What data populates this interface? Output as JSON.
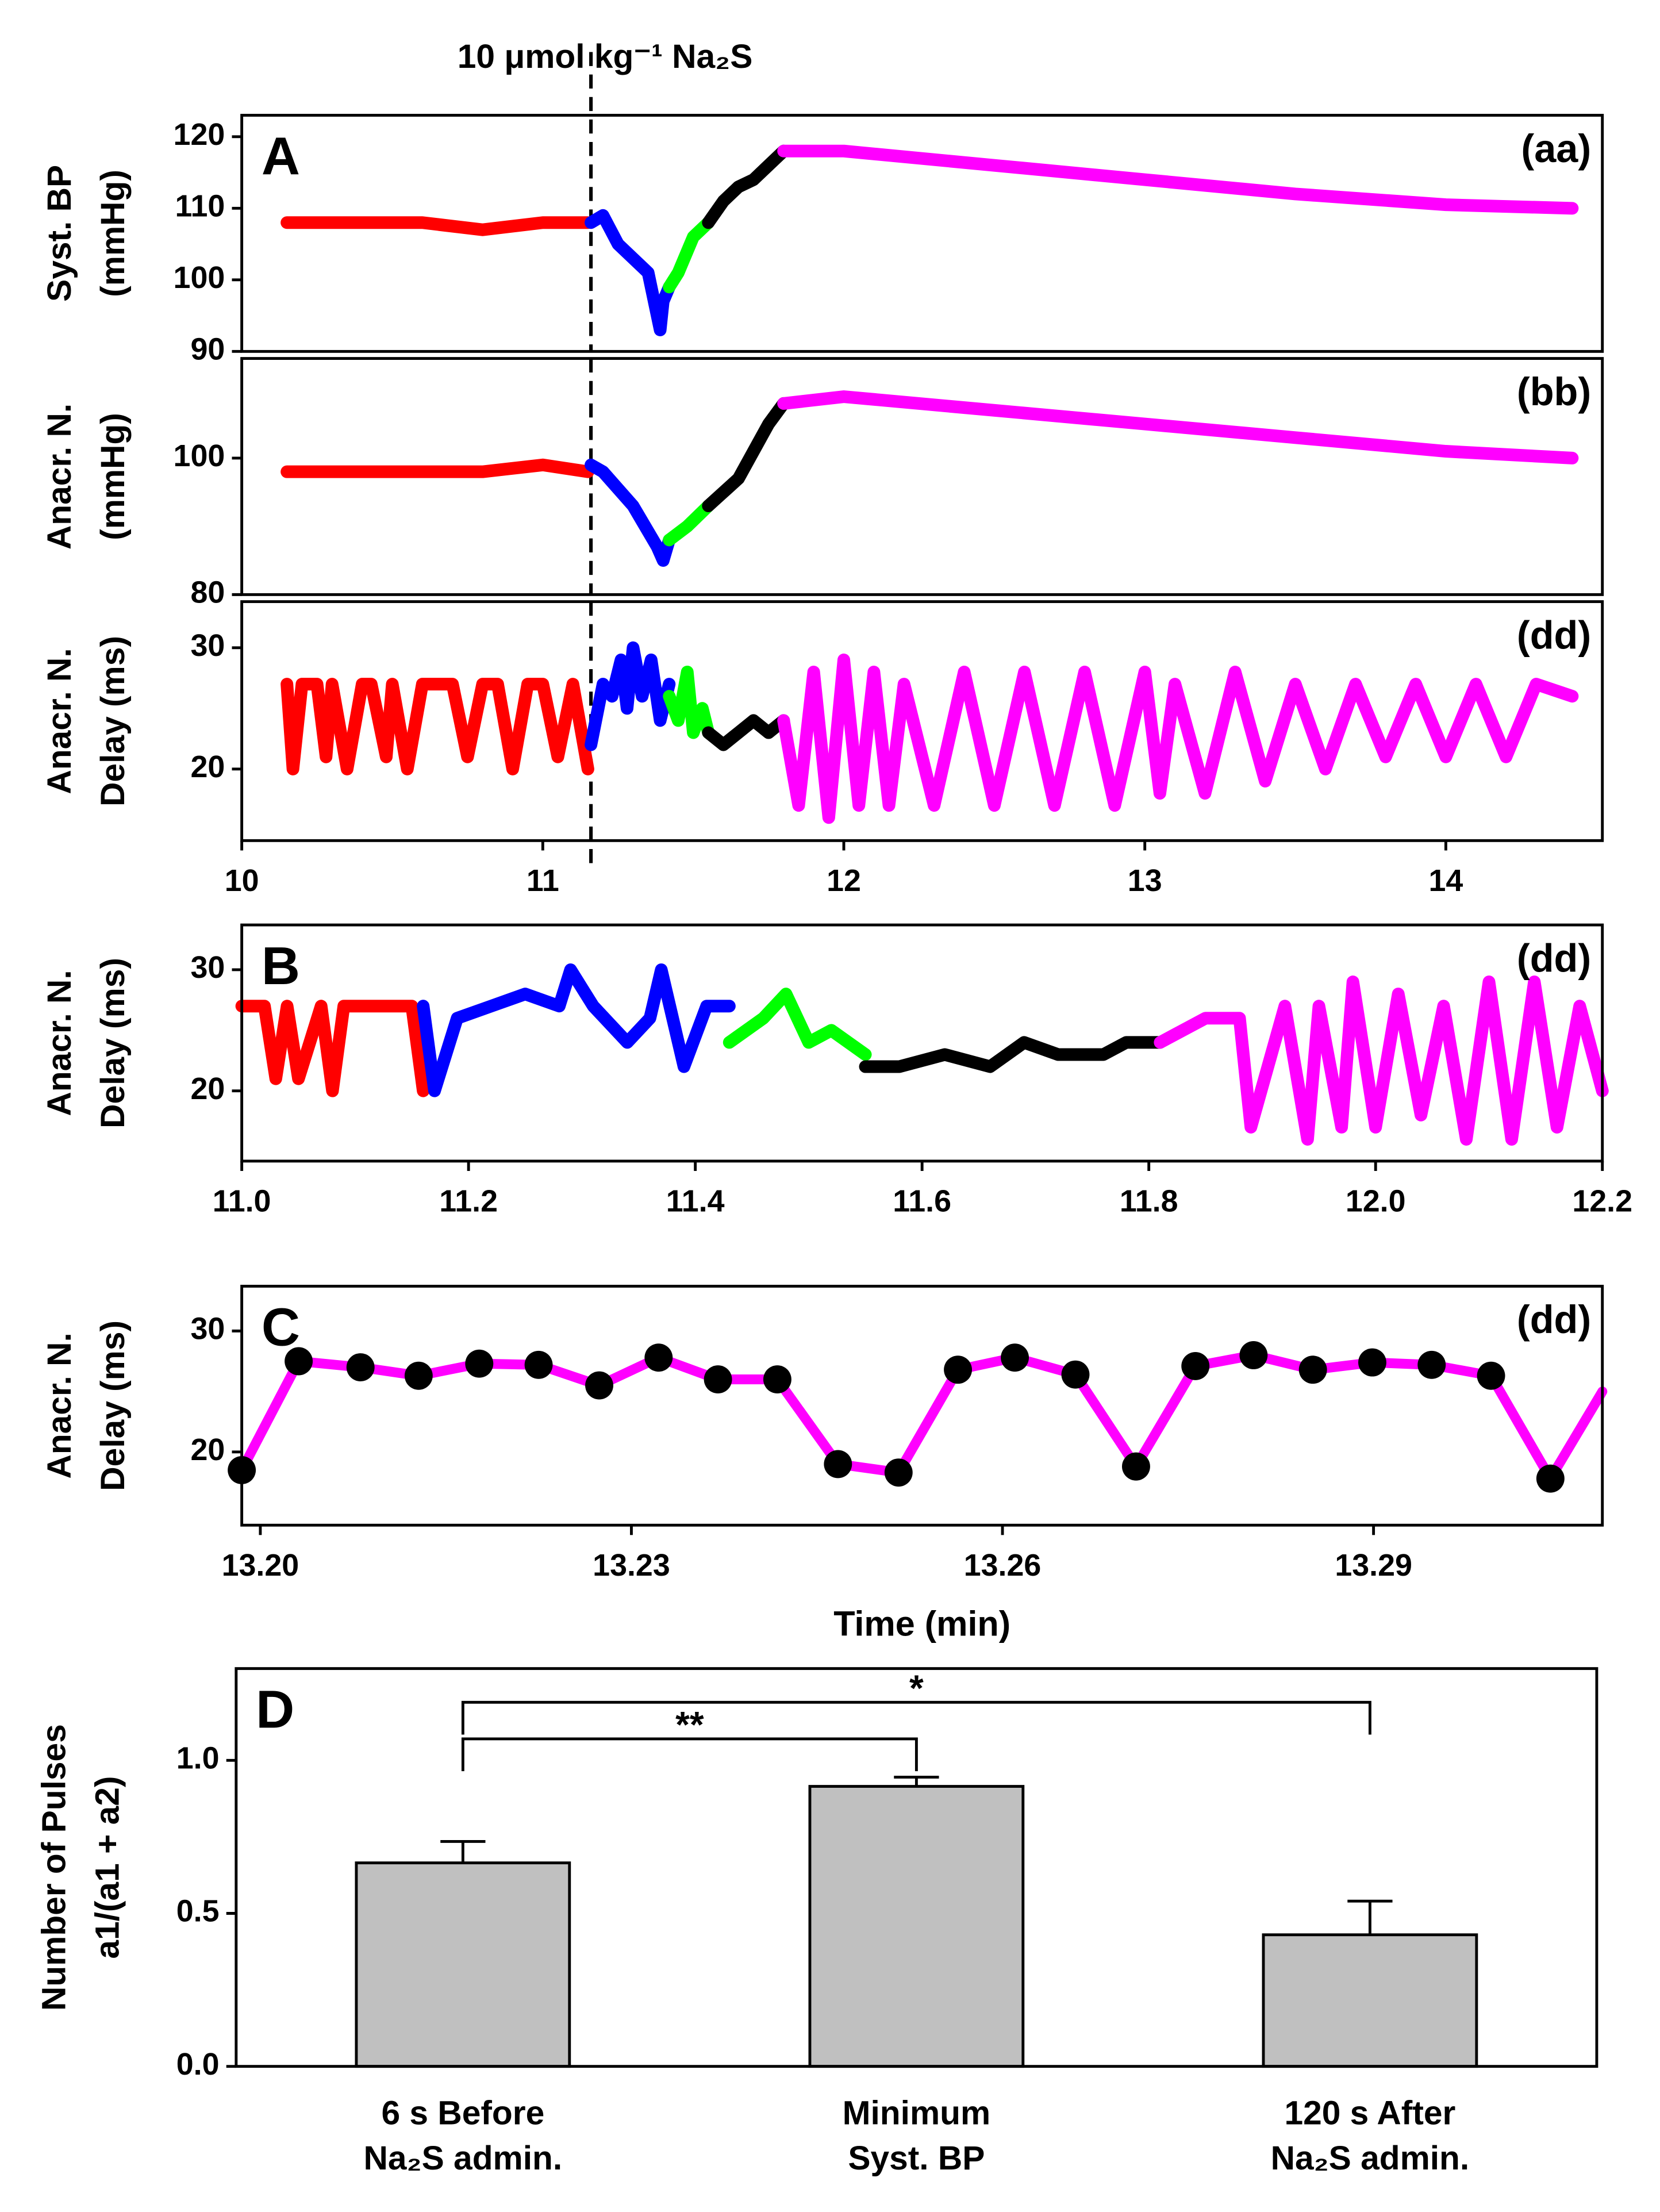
{
  "chart_data": [
    {
      "type": "line",
      "panel": "A",
      "tag": "(aa)",
      "ylabel": [
        "Syst. BP",
        "(mmHg)"
      ],
      "annotation": "10 μmol kg⁻¹ Na₂S",
      "vline": 11.16,
      "xlim": [
        10,
        14.52
      ],
      "ylim": [
        90,
        123
      ],
      "yticks": [
        90,
        100,
        110,
        120
      ],
      "series": [
        {
          "color": "#ff0000",
          "x": [
            10.15,
            10.4,
            10.6,
            10.8,
            11.0,
            11.15
          ],
          "values": [
            108,
            108,
            108,
            107,
            108,
            108
          ]
        },
        {
          "color": "#0000ff",
          "x": [
            11.16,
            11.2,
            11.25,
            11.3,
            11.35,
            11.39,
            11.4,
            11.42
          ],
          "values": [
            108,
            109,
            105,
            103,
            101,
            93,
            97,
            99
          ]
        },
        {
          "color": "#00ff00",
          "x": [
            11.42,
            11.45,
            11.5,
            11.55
          ],
          "values": [
            99,
            101,
            106,
            108
          ]
        },
        {
          "color": "#000000",
          "x": [
            11.55,
            11.6,
            11.65,
            11.7,
            11.75,
            11.8
          ],
          "values": [
            108,
            111,
            113,
            114,
            116,
            118
          ]
        },
        {
          "color": "#ff00ff",
          "x": [
            11.8,
            12.0,
            12.5,
            13.0,
            13.5,
            14.0,
            14.42
          ],
          "values": [
            118,
            118,
            116,
            114,
            112,
            110.5,
            110
          ]
        }
      ]
    },
    {
      "type": "line",
      "tag": "(bb)",
      "ylabel": [
        "Anacr. N.",
        "(mmHg)"
      ],
      "vline": 11.16,
      "xlim": [
        10,
        14.52
      ],
      "ylim": [
        80,
        114.6
      ],
      "yticks": [
        80,
        100
      ],
      "series": [
        {
          "color": "#ff0000",
          "x": [
            10.15,
            10.4,
            10.6,
            10.8,
            11.0,
            11.15
          ],
          "values": [
            98,
            98,
            98,
            98,
            99,
            98
          ]
        },
        {
          "color": "#0000ff",
          "x": [
            11.16,
            11.2,
            11.3,
            11.38,
            11.4,
            11.42
          ],
          "values": [
            99,
            98,
            93,
            87,
            85,
            88
          ]
        },
        {
          "color": "#00ff00",
          "x": [
            11.42,
            11.48,
            11.55
          ],
          "values": [
            88,
            90,
            93
          ]
        },
        {
          "color": "#000000",
          "x": [
            11.55,
            11.6,
            11.65,
            11.7,
            11.75,
            11.8
          ],
          "values": [
            93,
            95,
            97,
            101,
            105,
            108
          ]
        },
        {
          "color": "#ff00ff",
          "x": [
            11.8,
            12.0,
            12.5,
            13.0,
            13.5,
            14.0,
            14.42
          ],
          "values": [
            108,
            109,
            107,
            105,
            103,
            101,
            100
          ]
        }
      ]
    },
    {
      "type": "line",
      "tag": "(dd)",
      "ylabel": [
        "Anacr. N.",
        "Delay (ms)"
      ],
      "vline": 11.16,
      "xlim": [
        10,
        14.52
      ],
      "ylim": [
        14.1,
        33.8
      ],
      "yticks": [
        20,
        30
      ],
      "xticks": [
        10,
        11,
        12,
        13,
        14
      ],
      "series": [
        {
          "color": "#ff0000",
          "x": [
            10.15,
            10.17,
            10.2,
            10.25,
            10.28,
            10.3,
            10.35,
            10.4,
            10.43,
            10.48,
            10.5,
            10.55,
            10.6,
            10.65,
            10.7,
            10.75,
            10.8,
            10.85,
            10.9,
            10.95,
            11.0,
            11.05,
            11.1,
            11.15
          ],
          "values": [
            27,
            20,
            27,
            27,
            21,
            27,
            20,
            27,
            27,
            21,
            27,
            20,
            27,
            27,
            27,
            21,
            27,
            27,
            20,
            27,
            27,
            21,
            27,
            20
          ]
        },
        {
          "color": "#0000ff",
          "x": [
            11.16,
            11.2,
            11.23,
            11.26,
            11.28,
            11.3,
            11.33,
            11.36,
            11.39,
            11.42
          ],
          "values": [
            22,
            27,
            26,
            29,
            25,
            30,
            26,
            29,
            24,
            27
          ]
        },
        {
          "color": "#00ff00",
          "x": [
            11.42,
            11.45,
            11.48,
            11.5,
            11.53,
            11.55
          ],
          "values": [
            26,
            24,
            28,
            23,
            25,
            23
          ]
        },
        {
          "color": "#000000",
          "x": [
            11.55,
            11.6,
            11.65,
            11.7,
            11.75,
            11.8
          ],
          "values": [
            23,
            22,
            23,
            24,
            23,
            24
          ]
        },
        {
          "color": "#ff00ff",
          "x": [
            11.8,
            11.85,
            11.9,
            11.95,
            12.0,
            12.05,
            12.1,
            12.15,
            12.2,
            12.3,
            12.4,
            12.5,
            12.6,
            12.7,
            12.8,
            12.9,
            13.0,
            13.05,
            13.1,
            13.2,
            13.3,
            13.4,
            13.5,
            13.6,
            13.7,
            13.8,
            13.9,
            14.0,
            14.1,
            14.2,
            14.3,
            14.42
          ],
          "values": [
            24,
            17,
            28,
            16,
            29,
            17,
            28,
            17,
            27,
            17,
            28,
            17,
            28,
            17,
            28,
            17,
            28,
            18,
            27,
            18,
            28,
            19,
            27,
            20,
            27,
            21,
            27,
            21,
            27,
            21,
            27,
            26
          ]
        }
      ]
    },
    {
      "type": "line",
      "panel": "B",
      "tag": "(dd)",
      "ylabel": [
        "Anacr. N.",
        "Delay (ms)"
      ],
      "xlim": [
        11.0,
        12.2
      ],
      "ylim": [
        14.2,
        33.7
      ],
      "yticks": [
        20,
        30
      ],
      "xticks": [
        {
          "value": 11,
          "label": "11.0"
        },
        {
          "value": 11.2,
          "label": "11.2"
        },
        {
          "value": 11.4,
          "label": "11.4"
        },
        {
          "value": 11.6,
          "label": "11.6"
        },
        {
          "value": 11.8,
          "label": "11.8"
        },
        {
          "value": 12,
          "label": "12.0"
        },
        {
          "value": 12.2,
          "label": "12.2"
        }
      ],
      "series": [
        {
          "color": "#ff0000",
          "x": [
            11.0,
            11.02,
            11.03,
            11.04,
            11.05,
            11.07,
            11.08,
            11.09,
            11.12,
            11.15,
            11.16
          ],
          "values": [
            27,
            27,
            21,
            27,
            21,
            27,
            20,
            27,
            27,
            27,
            20
          ]
        },
        {
          "color": "#0000ff",
          "x": [
            11.16,
            11.17,
            11.19,
            11.22,
            11.25,
            11.28,
            11.29,
            11.31,
            11.34,
            11.36,
            11.37,
            11.39,
            11.41,
            11.43
          ],
          "values": [
            27,
            20,
            26,
            27,
            28,
            27,
            30,
            27,
            24,
            26,
            30,
            22,
            27,
            27
          ]
        },
        {
          "color": "#00ff00",
          "x": [
            11.43,
            11.46,
            11.48,
            11.5,
            11.52,
            11.55
          ],
          "values": [
            24,
            26,
            28,
            24,
            25,
            23
          ]
        },
        {
          "color": "#000000",
          "x": [
            11.55,
            11.58,
            11.62,
            11.66,
            11.69,
            11.72,
            11.76,
            11.78,
            11.81
          ],
          "values": [
            22,
            22,
            23,
            22,
            24,
            23,
            23,
            24,
            24
          ]
        },
        {
          "color": "#ff00ff",
          "x": [
            11.81,
            11.85,
            11.88,
            11.89,
            11.92,
            11.94,
            11.95,
            11.97,
            11.98,
            12.0,
            12.02,
            12.04,
            12.06,
            12.08,
            12.1,
            12.12,
            12.14,
            12.16,
            12.18,
            12.2
          ],
          "values": [
            24,
            26,
            26,
            17,
            27,
            16,
            27,
            17,
            29,
            17,
            28,
            18,
            27,
            16,
            29,
            16,
            29,
            17,
            27,
            20
          ]
        }
      ]
    },
    {
      "type": "line",
      "panel": "C",
      "tag": "(dd)",
      "ylabel": [
        "Anacr. N.",
        "Delay (ms)"
      ],
      "xlabel": "Time (min)",
      "markers": true,
      "marker_color": "#000000",
      "xlim": [
        13.1985,
        13.3085
      ],
      "ylim": [
        13.95,
        33.7
      ],
      "yticks": [
        20,
        30
      ],
      "xticks": [
        {
          "value": 13.2,
          "label": "13.20"
        },
        {
          "value": 13.23,
          "label": "13.23"
        },
        {
          "value": 13.26,
          "label": "13.26"
        },
        {
          "value": 13.29,
          "label": "13.29"
        }
      ],
      "series": [
        {
          "color": "#ff00ff",
          "x": [
            13.1985,
            13.2031,
            13.2081,
            13.2128,
            13.2177,
            13.2225,
            13.2274,
            13.2322,
            13.237,
            13.2418,
            13.2467,
            13.2516,
            13.2564,
            13.261,
            13.2659,
            13.2708,
            13.2756,
            13.2803,
            13.2851,
            13.2899,
            13.2947,
            13.2995,
            13.3043,
            13.3085
          ],
          "values": [
            18.5,
            27.5,
            27,
            26.3,
            27.3,
            27.2,
            25.5,
            27.8,
            26,
            26,
            19,
            18.3,
            26.8,
            27.8,
            26.4,
            18.8,
            27.1,
            28,
            26.8,
            27.4,
            27.2,
            26.3,
            17.8,
            25
          ]
        }
      ]
    },
    {
      "type": "bar",
      "panel": "D",
      "ylabel": [
        "Number of Pulses",
        "a1/(a1 + a2)"
      ],
      "color": "#c0c0c0",
      "categories": [
        [
          "6 s Before",
          "Na₂S admin."
        ],
        [
          "Minimum",
          "Syst. BP"
        ],
        [
          "120 s After",
          "Na₂S admin."
        ]
      ],
      "values": [
        0.665,
        0.915,
        0.43
      ],
      "errors": [
        0.07,
        0.03,
        0.11
      ],
      "ylim": [
        0,
        1.3
      ],
      "yticks": [
        {
          "value": 0,
          "label": "0.0"
        },
        0.5,
        {
          "value": 1,
          "label": "1.0"
        }
      ],
      "significance": [
        {
          "label": "**",
          "pair": [
            0,
            1
          ]
        },
        {
          "label": "*",
          "pair": [
            0,
            2
          ]
        }
      ]
    }
  ]
}
